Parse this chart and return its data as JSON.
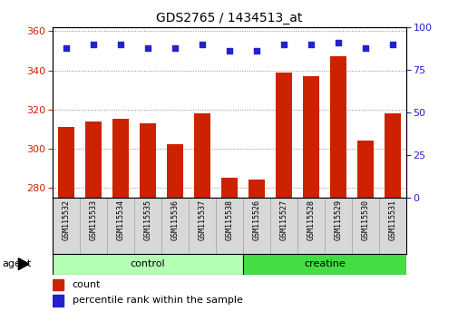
{
  "title": "GDS2765 / 1434513_at",
  "samples": [
    "GSM115532",
    "GSM115533",
    "GSM115534",
    "GSM115535",
    "GSM115536",
    "GSM115537",
    "GSM115538",
    "GSM115526",
    "GSM115527",
    "GSM115528",
    "GSM115529",
    "GSM115530",
    "GSM115531"
  ],
  "counts": [
    311,
    314,
    315,
    313,
    302,
    318,
    285,
    284,
    339,
    337,
    347,
    304,
    318
  ],
  "percentile_ranks": [
    88,
    90,
    90,
    88,
    88,
    90,
    86,
    86,
    90,
    90,
    91,
    88,
    90
  ],
  "groups": [
    {
      "label": "control",
      "start": 0,
      "end": 7,
      "color": "#b3ffb3"
    },
    {
      "label": "creatine",
      "start": 7,
      "end": 13,
      "color": "#44dd44"
    }
  ],
  "ylim_left": [
    275,
    362
  ],
  "ylim_right": [
    0,
    100
  ],
  "yticks_left": [
    280,
    300,
    320,
    340,
    360
  ],
  "yticks_right": [
    0,
    25,
    50,
    75,
    100
  ],
  "bar_color": "#cc2200",
  "dot_color": "#2222cc",
  "bar_width": 0.6,
  "agent_label": "agent",
  "legend_count": "count",
  "legend_percentile": "percentile rank within the sample",
  "grid_color": "#888888",
  "background_color": "#ffffff"
}
